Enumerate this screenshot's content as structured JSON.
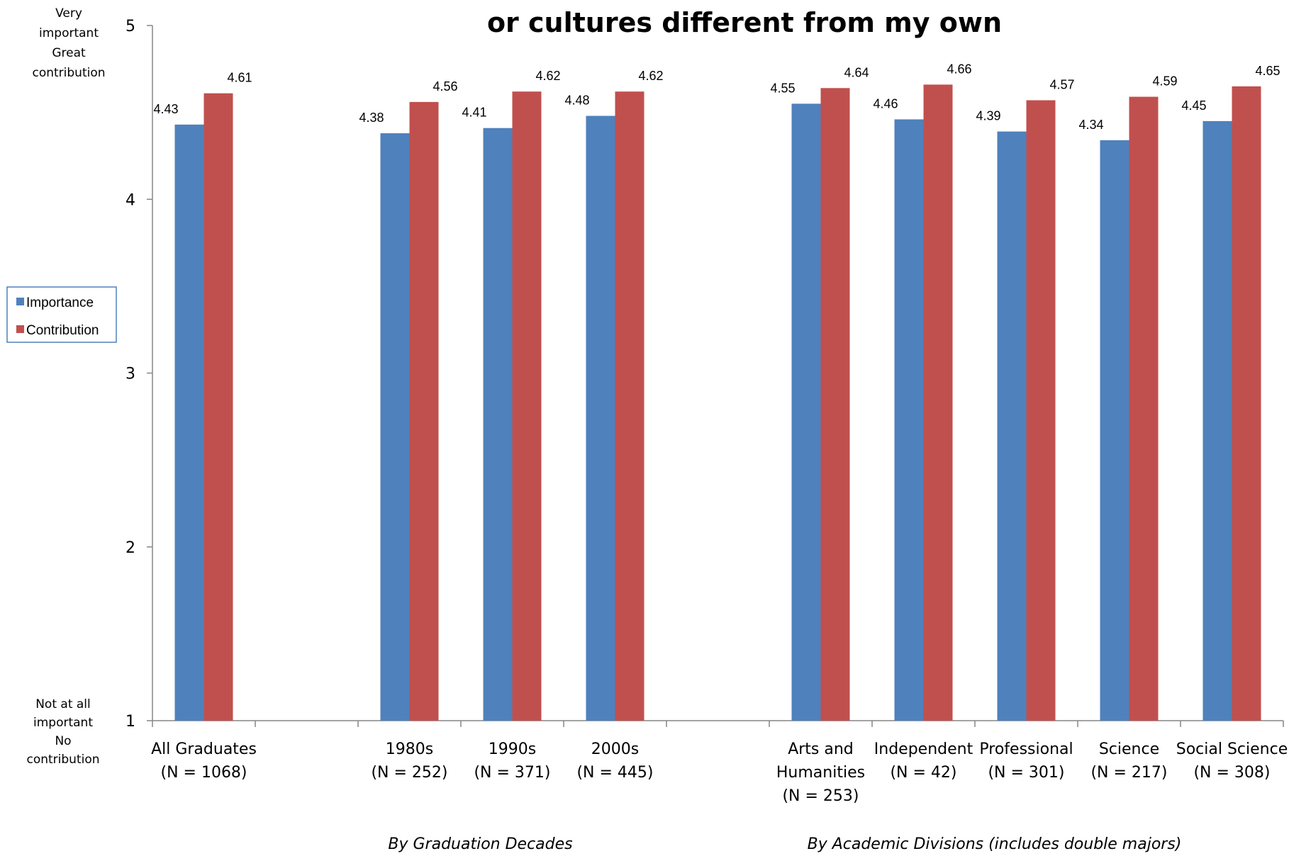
{
  "chart_data": {
    "type": "bar",
    "title": "or cultures different from my own",
    "ylim": [
      1,
      5
    ],
    "yticks": [
      "1",
      "2",
      "3",
      "4",
      "5"
    ],
    "y_anchor_top": [
      "Very",
      "important",
      "Great",
      "contribution"
    ],
    "y_anchor_bottom": [
      "Not at all",
      "important",
      "No",
      "contribution"
    ],
    "legend_position": "left",
    "grid": false,
    "categories": [
      {
        "lines": [
          "All Graduates",
          "(N = 1068)"
        ],
        "slot": 0
      },
      {
        "lines": [
          "1980s",
          "(N = 252)"
        ],
        "slot": 2
      },
      {
        "lines": [
          "1990s",
          "(N = 371)"
        ],
        "slot": 3
      },
      {
        "lines": [
          "2000s",
          "(N = 445)"
        ],
        "slot": 4
      },
      {
        "lines": [
          "Arts and",
          "Humanities",
          "(N = 253)"
        ],
        "slot": 6
      },
      {
        "lines": [
          "Independent",
          "(N = 42)"
        ],
        "slot": 7
      },
      {
        "lines": [
          "Professional",
          "(N = 301)"
        ],
        "slot": 8
      },
      {
        "lines": [
          "Science",
          "(N = 217)"
        ],
        "slot": 9
      },
      {
        "lines": [
          "Social Science",
          "(N = 308)"
        ],
        "slot": 10
      }
    ],
    "total_slots": 11,
    "series": [
      {
        "name": "Importance",
        "color": "#4f81bd",
        "values": [
          4.43,
          4.38,
          4.41,
          4.48,
          4.55,
          4.46,
          4.39,
          4.34,
          4.45
        ],
        "labels": [
          "4.43",
          "4.38",
          "4.41",
          "4.48",
          "4.55",
          "4.46",
          "4.39",
          "4.34",
          "4.45"
        ]
      },
      {
        "name": "Contribution",
        "color": "#c0504d",
        "values": [
          4.61,
          4.56,
          4.62,
          4.62,
          4.64,
          4.66,
          4.57,
          4.59,
          4.65
        ],
        "labels": [
          "4.61",
          "4.56",
          "4.62",
          "4.62",
          "4.64",
          "4.66",
          "4.57",
          "4.59",
          "4.65"
        ]
      }
    ],
    "group_labels": [
      {
        "text": "By Graduation Decades",
        "center_slot": 3
      },
      {
        "text": "By Academic Divisions (includes double majors)",
        "center_slot": 8
      }
    ]
  },
  "colors": {
    "axis": "#868686",
    "legend_border": "#4f81bd"
  }
}
